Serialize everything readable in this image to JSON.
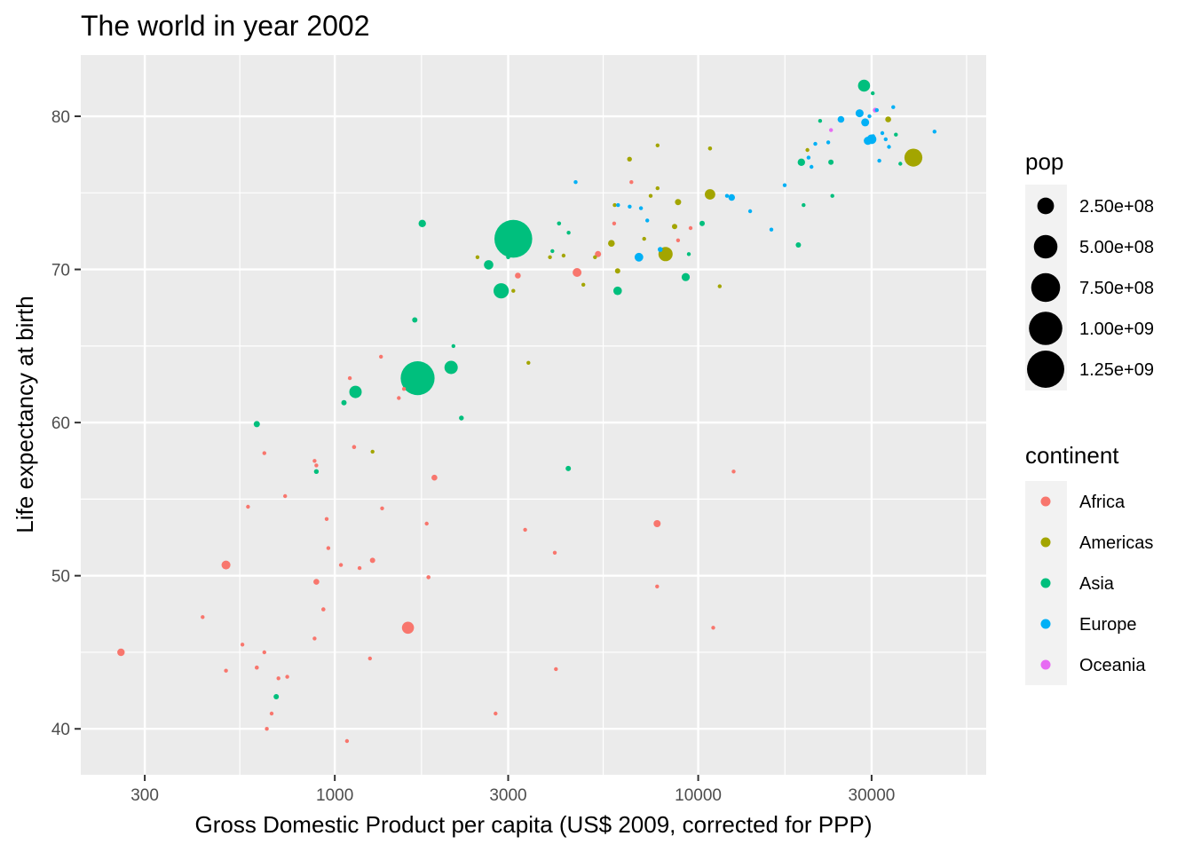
{
  "chart_data": {
    "type": "scatter",
    "title": "The world in year 2002",
    "xlabel": "Gross Domestic Product per capita (US$ 2009, corrected for PPP)",
    "ylabel": "Life expectancy at birth",
    "x_scale": "log10",
    "xlim": [
      200,
      62000
    ],
    "ylim": [
      37,
      84
    ],
    "x_ticks": [
      {
        "value": 300,
        "label": "300"
      },
      {
        "value": 1000,
        "label": "1000"
      },
      {
        "value": 3000,
        "label": "3000"
      },
      {
        "value": 10000,
        "label": "10000"
      },
      {
        "value": 30000,
        "label": "30000"
      }
    ],
    "y_ticks": [
      {
        "value": 40,
        "label": "40"
      },
      {
        "value": 50,
        "label": "50"
      },
      {
        "value": 60,
        "label": "60"
      },
      {
        "value": 70,
        "label": "70"
      },
      {
        "value": 80,
        "label": "80"
      }
    ],
    "grid": true,
    "legend_position": "right",
    "size_legend": {
      "title": "pop",
      "entries": [
        {
          "value": 250000000,
          "label": "2.50e+08"
        },
        {
          "value": 500000000,
          "label": "5.00e+08"
        },
        {
          "value": 750000000,
          "label": "7.50e+08"
        },
        {
          "value": 1000000000,
          "label": "1.00e+09"
        },
        {
          "value": 1250000000,
          "label": "1.25e+09"
        }
      ]
    },
    "color_legend": {
      "title": "continent",
      "entries": [
        {
          "label": "Africa",
          "color": "#F8766D"
        },
        {
          "label": "Americas",
          "color": "#A3A500"
        },
        {
          "label": "Asia",
          "color": "#00BF7D"
        },
        {
          "label": "Europe",
          "color": "#00B0F6"
        },
        {
          "label": "Oceania",
          "color": "#E76BF3"
        }
      ]
    },
    "series": [
      {
        "name": "Africa",
        "points": [
          {
            "x": 258,
            "y": 45.0,
            "pop": 50000000
          },
          {
            "x": 433,
            "y": 47.3,
            "pop": 8000000
          },
          {
            "x": 502,
            "y": 50.7,
            "pop": 70000000
          },
          {
            "x": 502,
            "y": 43.8,
            "pop": 5000000
          },
          {
            "x": 557,
            "y": 45.5,
            "pop": 3000000
          },
          {
            "x": 577,
            "y": 54.5,
            "pop": 12000000
          },
          {
            "x": 610,
            "y": 44.0,
            "pop": 15000000
          },
          {
            "x": 640,
            "y": 58.0,
            "pop": 2000000
          },
          {
            "x": 640,
            "y": 45.0,
            "pop": 10000000
          },
          {
            "x": 650,
            "y": 40.0,
            "pop": 10000000
          },
          {
            "x": 670,
            "y": 41.0,
            "pop": 6000000
          },
          {
            "x": 700,
            "y": 43.3,
            "pop": 5000000
          },
          {
            "x": 740,
            "y": 43.4,
            "pop": 7000000
          },
          {
            "x": 730,
            "y": 55.2,
            "pop": 5000000
          },
          {
            "x": 880,
            "y": 57.5,
            "pop": 3000000
          },
          {
            "x": 890,
            "y": 57.2,
            "pop": 6000000
          },
          {
            "x": 880,
            "y": 45.9,
            "pop": 8000000
          },
          {
            "x": 890,
            "y": 49.6,
            "pop": 30000000
          },
          {
            "x": 930,
            "y": 47.8,
            "pop": 15000000
          },
          {
            "x": 950,
            "y": 53.7,
            "pop": 7000000
          },
          {
            "x": 960,
            "y": 51.8,
            "pop": 9000000
          },
          {
            "x": 1040,
            "y": 50.7,
            "pop": 12000000
          },
          {
            "x": 1080,
            "y": 39.2,
            "pop": 10000000
          },
          {
            "x": 1100,
            "y": 62.9,
            "pop": 2000000
          },
          {
            "x": 1130,
            "y": 58.4,
            "pop": 15000000
          },
          {
            "x": 1170,
            "y": 50.5,
            "pop": 8000000
          },
          {
            "x": 1250,
            "y": 44.6,
            "pop": 4000000
          },
          {
            "x": 1270,
            "y": 51.0,
            "pop": 25000000
          },
          {
            "x": 1340,
            "y": 64.3,
            "pop": 2000000
          },
          {
            "x": 1350,
            "y": 54.4,
            "pop": 10000000
          },
          {
            "x": 1500,
            "y": 61.6,
            "pop": 12000000
          },
          {
            "x": 1550,
            "y": 62.2,
            "pop": 3000000
          },
          {
            "x": 1590,
            "y": 46.6,
            "pop": 130000000
          },
          {
            "x": 1790,
            "y": 53.4,
            "pop": 2000000
          },
          {
            "x": 1810,
            "y": 49.9,
            "pop": 15000000
          },
          {
            "x": 1880,
            "y": 56.4,
            "pop": 30000000
          },
          {
            "x": 2770,
            "y": 41.0,
            "pop": 8000000
          },
          {
            "x": 3190,
            "y": 69.6,
            "pop": 30000000
          },
          {
            "x": 3340,
            "y": 53.0,
            "pop": 4000000
          },
          {
            "x": 4060,
            "y": 43.9,
            "pop": 2000000
          },
          {
            "x": 4030,
            "y": 51.5,
            "pop": 3000000
          },
          {
            "x": 4640,
            "y": 69.8,
            "pop": 70000000
          },
          {
            "x": 5300,
            "y": 71.0,
            "pop": 35000000
          },
          {
            "x": 5870,
            "y": 73.0,
            "pop": 9000000
          },
          {
            "x": 6550,
            "y": 75.7,
            "pop": 2000000
          },
          {
            "x": 7710,
            "y": 49.3,
            "pop": 3000000
          },
          {
            "x": 7710,
            "y": 53.4,
            "pop": 45000000
          },
          {
            "x": 8800,
            "y": 71.9,
            "pop": 2000000
          },
          {
            "x": 9530,
            "y": 72.7,
            "pop": 5000000
          },
          {
            "x": 11000,
            "y": 46.6,
            "pop": 2000000
          },
          {
            "x": 12520,
            "y": 56.8,
            "pop": 2000000
          }
        ]
      },
      {
        "name": "Americas",
        "points": [
          {
            "x": 1270,
            "y": 58.1,
            "pop": 8000000
          },
          {
            "x": 2470,
            "y": 70.8,
            "pop": 5000000
          },
          {
            "x": 3100,
            "y": 68.6,
            "pop": 8000000
          },
          {
            "x": 3410,
            "y": 63.9,
            "pop": 9000000
          },
          {
            "x": 3910,
            "y": 70.8,
            "pop": 5000000
          },
          {
            "x": 4260,
            "y": 70.9,
            "pop": 6000000
          },
          {
            "x": 4830,
            "y": 69.0,
            "pop": 12000000
          },
          {
            "x": 5200,
            "y": 70.8,
            "pop": 3000000
          },
          {
            "x": 5770,
            "y": 71.7,
            "pop": 40000000
          },
          {
            "x": 5890,
            "y": 74.2,
            "pop": 12000000
          },
          {
            "x": 6000,
            "y": 69.9,
            "pop": 25000000
          },
          {
            "x": 6470,
            "y": 77.2,
            "pop": 20000000
          },
          {
            "x": 7100,
            "y": 72.0,
            "pop": 5000000
          },
          {
            "x": 7400,
            "y": 74.8,
            "pop": 4000000
          },
          {
            "x": 7730,
            "y": 75.3,
            "pop": 4000000
          },
          {
            "x": 7730,
            "y": 78.1,
            "pop": 4000000
          },
          {
            "x": 8130,
            "y": 71.0,
            "pop": 180000000
          },
          {
            "x": 8610,
            "y": 72.8,
            "pop": 25000000
          },
          {
            "x": 8800,
            "y": 74.4,
            "pop": 35000000
          },
          {
            "x": 10780,
            "y": 74.9,
            "pop": 100000000
          },
          {
            "x": 10780,
            "y": 77.9,
            "pop": 15000000
          },
          {
            "x": 11460,
            "y": 68.9,
            "pop": 2000000
          },
          {
            "x": 19970,
            "y": 77.8,
            "pop": 3000000
          },
          {
            "x": 33330,
            "y": 79.8,
            "pop": 30000000
          },
          {
            "x": 39100,
            "y": 77.3,
            "pop": 290000000
          }
        ]
      },
      {
        "name": "Asia",
        "points": [
          {
            "x": 690,
            "y": 42.1,
            "pop": 25000000
          },
          {
            "x": 610,
            "y": 59.9,
            "pop": 35000000
          },
          {
            "x": 890,
            "y": 56.8,
            "pop": 20000000
          },
          {
            "x": 1060,
            "y": 61.3,
            "pop": 25000000
          },
          {
            "x": 1140,
            "y": 62.0,
            "pop": 140000000
          },
          {
            "x": 1660,
            "y": 66.7,
            "pop": 25000000
          },
          {
            "x": 1740,
            "y": 73.0,
            "pop": 50000000
          },
          {
            "x": 1690,
            "y": 62.9,
            "pop": 1030000000
          },
          {
            "x": 2090,
            "y": 63.6,
            "pop": 160000000
          },
          {
            "x": 2120,
            "y": 65.0,
            "pop": 3000000
          },
          {
            "x": 2230,
            "y": 60.3,
            "pop": 20000000
          },
          {
            "x": 2650,
            "y": 70.3,
            "pop": 80000000
          },
          {
            "x": 2870,
            "y": 68.6,
            "pop": 210000000
          },
          {
            "x": 3000,
            "y": 70.8,
            "pop": 15000000
          },
          {
            "x": 3100,
            "y": 72.0,
            "pop": 1280000000
          },
          {
            "x": 3970,
            "y": 71.2,
            "pop": 5000000
          },
          {
            "x": 4140,
            "y": 73.0,
            "pop": 15000000
          },
          {
            "x": 4390,
            "y": 57.0,
            "pop": 25000000
          },
          {
            "x": 4400,
            "y": 72.4,
            "pop": 5000000
          },
          {
            "x": 6000,
            "y": 68.6,
            "pop": 65000000
          },
          {
            "x": 9240,
            "y": 69.5,
            "pop": 60000000
          },
          {
            "x": 9420,
            "y": 71.0,
            "pop": 6000000
          },
          {
            "x": 10250,
            "y": 73.0,
            "pop": 25000000
          },
          {
            "x": 18860,
            "y": 71.6,
            "pop": 25000000
          },
          {
            "x": 19500,
            "y": 74.2,
            "pop": 3000000
          },
          {
            "x": 19230,
            "y": 77.0,
            "pop": 50000000
          },
          {
            "x": 21650,
            "y": 79.7,
            "pop": 6000000
          },
          {
            "x": 23190,
            "y": 77.0,
            "pop": 25000000
          },
          {
            "x": 23400,
            "y": 74.8,
            "pop": 2000000
          },
          {
            "x": 28600,
            "y": 82.0,
            "pop": 130000000
          },
          {
            "x": 30210,
            "y": 81.5,
            "pop": 7000000
          },
          {
            "x": 35000,
            "y": 78.8,
            "pop": 4000000
          },
          {
            "x": 36000,
            "y": 76.9,
            "pop": 3000000
          }
        ]
      },
      {
        "name": "Europe",
        "points": [
          {
            "x": 4600,
            "y": 75.7,
            "pop": 4000000
          },
          {
            "x": 6020,
            "y": 74.2,
            "pop": 4000000
          },
          {
            "x": 6480,
            "y": 74.1,
            "pop": 8000000
          },
          {
            "x": 6960,
            "y": 74.0,
            "pop": 3000000
          },
          {
            "x": 7240,
            "y": 73.2,
            "pop": 8000000
          },
          {
            "x": 6870,
            "y": 70.8,
            "pop": 67000000
          },
          {
            "x": 7860,
            "y": 71.3,
            "pop": 22000000
          },
          {
            "x": 12000,
            "y": 74.8,
            "pop": 5000000
          },
          {
            "x": 12360,
            "y": 74.7,
            "pop": 38000000
          },
          {
            "x": 13900,
            "y": 73.8,
            "pop": 10000000
          },
          {
            "x": 15900,
            "y": 72.6,
            "pop": 10000000
          },
          {
            "x": 17300,
            "y": 75.5,
            "pop": 10000000
          },
          {
            "x": 20120,
            "y": 77.3,
            "pop": 10000000
          },
          {
            "x": 20500,
            "y": 76.7,
            "pop": 4000000
          },
          {
            "x": 21000,
            "y": 78.2,
            "pop": 10000000
          },
          {
            "x": 22800,
            "y": 78.3,
            "pop": 10000000
          },
          {
            "x": 24700,
            "y": 79.8,
            "pop": 40000000
          },
          {
            "x": 27800,
            "y": 80.2,
            "pop": 58000000
          },
          {
            "x": 28800,
            "y": 79.6,
            "pop": 58000000
          },
          {
            "x": 29300,
            "y": 78.4,
            "pop": 60000000
          },
          {
            "x": 29600,
            "y": 80.0,
            "pop": 10000000
          },
          {
            "x": 30000,
            "y": 78.5,
            "pop": 82000000
          },
          {
            "x": 30300,
            "y": 78.7,
            "pop": 10000000
          },
          {
            "x": 31000,
            "y": 80.4,
            "pop": 8000000
          },
          {
            "x": 32100,
            "y": 78.9,
            "pop": 5000000
          },
          {
            "x": 32800,
            "y": 78.5,
            "pop": 10000000
          },
          {
            "x": 33500,
            "y": 78.0,
            "pop": 5000000
          },
          {
            "x": 34400,
            "y": 80.6,
            "pop": 8000000
          },
          {
            "x": 31500,
            "y": 77.1,
            "pop": 4000000
          },
          {
            "x": 44700,
            "y": 79.0,
            "pop": 4000000
          }
        ]
      },
      {
        "name": "Oceania",
        "points": [
          {
            "x": 23200,
            "y": 79.1,
            "pop": 4000000
          },
          {
            "x": 30700,
            "y": 80.4,
            "pop": 20000000
          }
        ]
      }
    ]
  }
}
